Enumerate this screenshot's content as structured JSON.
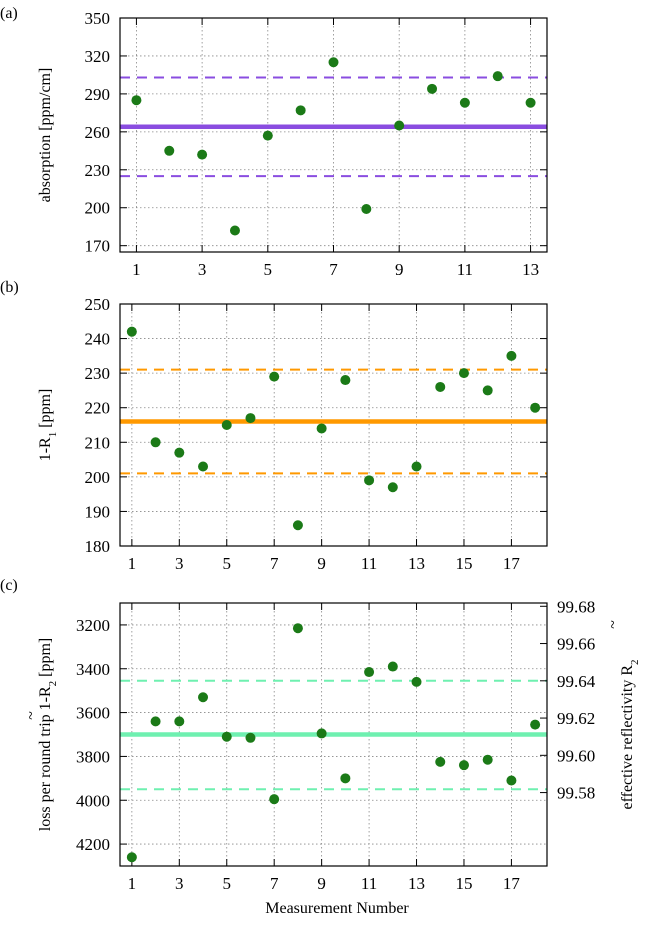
{
  "xlabel": "Measurement Number",
  "colors": {
    "point": "#1b7a17",
    "grid": "#888888",
    "panel_a": "#8a4de0",
    "panel_b": "#ff9900",
    "panel_c": "#6ff0b0"
  },
  "chart_data": [
    {
      "type": "scatter",
      "panel_label": "(a)",
      "ylabel": "absorption [ppm/cm]",
      "x": [
        1,
        2,
        3,
        4,
        5,
        6,
        7,
        8,
        9,
        10,
        11,
        12,
        13
      ],
      "y": [
        285,
        245,
        242,
        182,
        257,
        277,
        315,
        199,
        265,
        294,
        283,
        304,
        283
      ],
      "xlim": [
        0.5,
        13.5
      ],
      "ylim": [
        165,
        350
      ],
      "xticks": [
        1,
        3,
        5,
        7,
        9,
        11,
        13
      ],
      "yticks": [
        170,
        200,
        230,
        260,
        290,
        320,
        350
      ],
      "mean": 264,
      "band": [
        225,
        303
      ]
    },
    {
      "type": "scatter",
      "panel_label": "(b)",
      "ylabel": "1-R",
      "ylabel_sub": "1",
      "ylabel_unit": " [ppm]",
      "x": [
        1,
        2,
        3,
        4,
        5,
        6,
        7,
        8,
        9,
        10,
        11,
        12,
        13,
        14,
        15,
        16,
        17,
        18
      ],
      "y": [
        242,
        210,
        207,
        203,
        215,
        217,
        229,
        186,
        214,
        228,
        199,
        197,
        203,
        226,
        230,
        225,
        235,
        220
      ],
      "xlim": [
        0.5,
        18.5
      ],
      "ylim": [
        180,
        250
      ],
      "xticks": [
        1,
        3,
        5,
        7,
        9,
        11,
        13,
        15,
        17
      ],
      "yticks": [
        180,
        190,
        200,
        210,
        220,
        230,
        240,
        250
      ],
      "mean": 216,
      "band": [
        201,
        231
      ]
    },
    {
      "type": "scatter",
      "panel_label": "(c)",
      "ylabel": "loss per round trip 1-R",
      "ylabel_sub": "2",
      "ylabel_unit": " [ppm]",
      "ylabel_tilde": "~",
      "y2label": "effective reflectivity R",
      "y2label_sub": "2",
      "y2label_tilde": "~",
      "x": [
        1,
        2,
        3,
        4,
        5,
        6,
        7,
        8,
        9,
        10,
        11,
        12,
        13,
        14,
        15,
        16,
        17,
        18
      ],
      "y": [
        4260,
        3640,
        3640,
        3530,
        3710,
        3715,
        3995,
        3215,
        3695,
        3900,
        3415,
        3390,
        3460,
        3825,
        3840,
        3815,
        3910,
        3655
      ],
      "xlim": [
        0.5,
        18.5
      ],
      "ylim": [
        4300,
        3100
      ],
      "yticks": [
        3200,
        3400,
        3600,
        3800,
        4000,
        4200
      ],
      "xticks": [
        1,
        3,
        5,
        7,
        9,
        11,
        13,
        15,
        17
      ],
      "y2ticks": [
        "99.68",
        "99.66",
        "99.64",
        "99.62",
        "99.60",
        "99.58"
      ],
      "mean": 3700,
      "band": [
        3455,
        3950
      ]
    }
  ]
}
